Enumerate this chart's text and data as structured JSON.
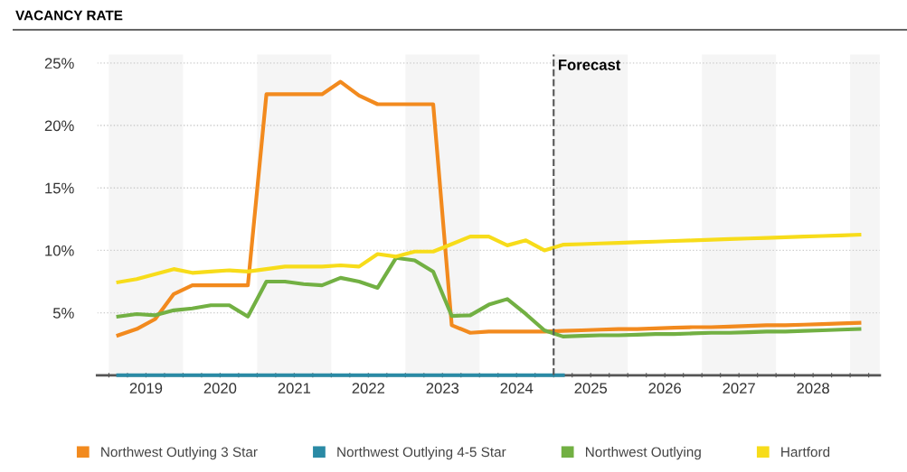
{
  "chart_data": {
    "type": "line",
    "title": "VACANCY RATE",
    "series": [
      {
        "name": "Northwest Outlying 3 Star",
        "color": "#f28a1e",
        "x": [
          2019.125,
          2019.375,
          2019.625,
          2019.875,
          2020.125,
          2020.375,
          2020.625,
          2020.875,
          2021.125,
          2021.375,
          2021.625,
          2021.875,
          2022.125,
          2022.375,
          2022.625,
          2022.875,
          2023.125,
          2023.375,
          2023.625,
          2023.875,
          2024.125,
          2024.375,
          2024.625,
          2024.875,
          2025.125,
          2025.375,
          2025.625,
          2025.875,
          2026.125,
          2026.375,
          2026.625,
          2026.875,
          2027.125,
          2027.375,
          2027.625,
          2027.875,
          2028.125,
          2028.375,
          2028.625,
          2028.875,
          2029.125
        ],
        "values": [
          3.2,
          3.7,
          4.5,
          6.5,
          7.2,
          7.2,
          7.2,
          7.2,
          22.5,
          22.5,
          22.5,
          22.5,
          23.5,
          22.4,
          21.7,
          21.7,
          21.7,
          21.7,
          4.0,
          3.4,
          3.5,
          3.5,
          3.5,
          3.5,
          3.55,
          3.6,
          3.65,
          3.7,
          3.7,
          3.75,
          3.8,
          3.85,
          3.85,
          3.9,
          3.95,
          4.0,
          4.0,
          4.05,
          4.1,
          4.15,
          4.2
        ]
      },
      {
        "name": "Northwest Outlying 4-5 Star",
        "color": "#2a8aa5",
        "x": [
          2019.125,
          2019.375,
          2019.625,
          2019.875,
          2020.125,
          2020.375,
          2020.625,
          2020.875,
          2021.125,
          2021.375,
          2021.625,
          2021.875,
          2022.125,
          2022.375,
          2022.625,
          2022.875,
          2023.125,
          2023.375,
          2023.625,
          2023.875,
          2024.125,
          2024.375,
          2024.625,
          2024.875,
          2025.125
        ],
        "values": [
          0,
          0,
          0,
          0,
          0,
          0,
          0,
          0,
          0,
          0,
          0,
          0,
          0,
          0,
          0,
          0,
          0,
          0,
          0,
          0,
          0,
          0,
          0,
          0,
          0
        ]
      },
      {
        "name": "Northwest Outlying",
        "color": "#72b043",
        "x": [
          2019.125,
          2019.375,
          2019.625,
          2019.875,
          2020.125,
          2020.375,
          2020.625,
          2020.875,
          2021.125,
          2021.375,
          2021.625,
          2021.875,
          2022.125,
          2022.375,
          2022.625,
          2022.875,
          2023.125,
          2023.375,
          2023.625,
          2023.875,
          2024.125,
          2024.375,
          2024.625,
          2024.875,
          2025.125,
          2025.375,
          2025.625,
          2025.875,
          2026.125,
          2026.375,
          2026.625,
          2026.875,
          2027.125,
          2027.375,
          2027.625,
          2027.875,
          2028.125,
          2028.375,
          2028.625,
          2028.875,
          2029.125
        ],
        "values": [
          4.7,
          4.9,
          4.8,
          5.2,
          5.35,
          5.6,
          5.6,
          4.7,
          7.5,
          7.5,
          7.3,
          7.2,
          7.8,
          7.5,
          7.0,
          9.4,
          9.2,
          8.3,
          4.75,
          4.8,
          5.65,
          6.1,
          4.9,
          3.6,
          3.1,
          3.15,
          3.2,
          3.2,
          3.25,
          3.3,
          3.3,
          3.35,
          3.4,
          3.4,
          3.45,
          3.5,
          3.5,
          3.55,
          3.6,
          3.65,
          3.7
        ]
      },
      {
        "name": "Hartford",
        "color": "#f7dc1a",
        "x": [
          2019.125,
          2019.375,
          2019.625,
          2019.875,
          2020.125,
          2020.375,
          2020.625,
          2020.875,
          2021.125,
          2021.375,
          2021.625,
          2021.875,
          2022.125,
          2022.375,
          2022.625,
          2022.875,
          2023.125,
          2023.375,
          2023.625,
          2023.875,
          2024.125,
          2024.375,
          2024.625,
          2024.875,
          2025.125,
          2025.375,
          2025.625,
          2025.875,
          2026.125,
          2026.375,
          2026.625,
          2026.875,
          2027.125,
          2027.375,
          2027.625,
          2027.875,
          2028.125,
          2028.375,
          2028.625,
          2028.875,
          2029.125
        ],
        "values": [
          7.45,
          7.7,
          8.1,
          8.5,
          8.2,
          8.3,
          8.4,
          8.3,
          8.5,
          8.7,
          8.7,
          8.7,
          8.8,
          8.7,
          9.7,
          9.5,
          9.9,
          9.9,
          10.5,
          11.1,
          11.1,
          10.4,
          10.8,
          10.0,
          10.45,
          10.5,
          10.55,
          10.6,
          10.65,
          10.7,
          10.75,
          10.8,
          10.85,
          10.9,
          10.95,
          11.0,
          11.05,
          11.1,
          11.15,
          11.2,
          11.25
        ]
      }
    ],
    "xlim": [
      2018.84,
      2029.4
    ],
    "xticks": [
      {
        "value": 2019,
        "label": null
      },
      {
        "value": 2019.25,
        "label": null
      },
      {
        "value": 2019.5,
        "label": "2019"
      },
      {
        "value": 2019.75,
        "label": null
      },
      {
        "value": 2020,
        "label": null
      },
      {
        "value": 2020.25,
        "label": null
      },
      {
        "value": 2020.5,
        "label": "2020"
      },
      {
        "value": 2020.75,
        "label": null
      },
      {
        "value": 2021,
        "label": null
      },
      {
        "value": 2021.25,
        "label": null
      },
      {
        "value": 2021.5,
        "label": "2021"
      },
      {
        "value": 2021.75,
        "label": null
      },
      {
        "value": 2022,
        "label": null
      },
      {
        "value": 2022.25,
        "label": null
      },
      {
        "value": 2022.5,
        "label": "2022"
      },
      {
        "value": 2022.75,
        "label": null
      },
      {
        "value": 2023,
        "label": null
      },
      {
        "value": 2023.25,
        "label": null
      },
      {
        "value": 2023.5,
        "label": "2023"
      },
      {
        "value": 2023.75,
        "label": null
      },
      {
        "value": 2024,
        "label": null
      },
      {
        "value": 2024.25,
        "label": null
      },
      {
        "value": 2024.5,
        "label": "2024"
      },
      {
        "value": 2024.75,
        "label": null
      },
      {
        "value": 2025,
        "label": null
      },
      {
        "value": 2025.25,
        "label": null
      },
      {
        "value": 2025.5,
        "label": "2025"
      },
      {
        "value": 2025.75,
        "label": null
      },
      {
        "value": 2026,
        "label": null
      },
      {
        "value": 2026.25,
        "label": null
      },
      {
        "value": 2026.5,
        "label": "2026"
      },
      {
        "value": 2026.75,
        "label": null
      },
      {
        "value": 2027,
        "label": null
      },
      {
        "value": 2027.25,
        "label": null
      },
      {
        "value": 2027.5,
        "label": "2027"
      },
      {
        "value": 2027.75,
        "label": null
      },
      {
        "value": 2028,
        "label": null
      },
      {
        "value": 2028.25,
        "label": null
      },
      {
        "value": 2028.5,
        "label": "2028"
      },
      {
        "value": 2028.75,
        "label": null
      },
      {
        "value": 2029,
        "label": null
      },
      {
        "value": 2029.25,
        "label": null
      }
    ],
    "ylim": [
      0,
      25.7
    ],
    "yticks": [
      {
        "value": 5,
        "label": "5%"
      },
      {
        "value": 10,
        "label": "10%"
      },
      {
        "value": 15,
        "label": "15%"
      },
      {
        "value": 20,
        "label": "20%"
      },
      {
        "value": 25,
        "label": "25%"
      }
    ],
    "grid": "y",
    "ref_lines": [
      {
        "axis": "x",
        "value": 2025,
        "label": "Forecast",
        "color": "#555555",
        "line_style": "dashed"
      }
    ],
    "bands": [
      {
        "axis": "x",
        "from": 2019,
        "to": 2020,
        "color": "#f5f5f5"
      },
      {
        "axis": "x",
        "from": 2021,
        "to": 2022,
        "color": "#f5f5f5"
      },
      {
        "axis": "x",
        "from": 2023,
        "to": 2024,
        "color": "#f5f5f5"
      },
      {
        "axis": "x",
        "from": 2025,
        "to": 2026,
        "color": "#f5f5f5"
      },
      {
        "axis": "x",
        "from": 2027,
        "to": 2028,
        "color": "#f5f5f5"
      },
      {
        "axis": "x",
        "from": 2029,
        "to": 2029.4,
        "color": "#f5f5f5"
      }
    ],
    "legend": "bottom",
    "marker": "none",
    "line_style": "solid"
  }
}
